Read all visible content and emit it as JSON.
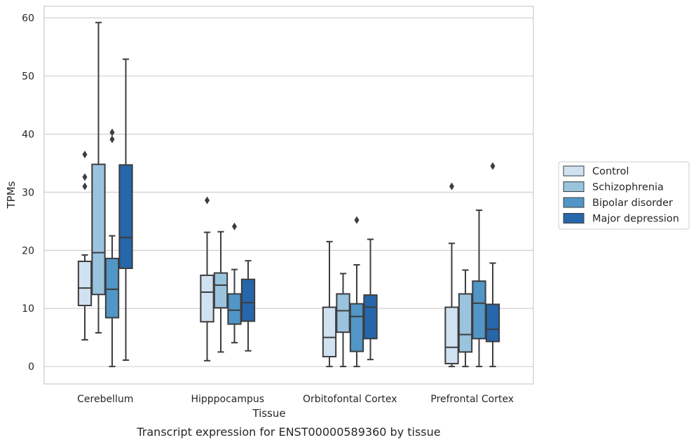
{
  "chart_data": {
    "type": "box",
    "caption": "Transcript expression for ENST00000589360 by tissue",
    "xlabel": "Tissue",
    "ylabel": "TPMs",
    "ylim": [
      -3,
      62
    ],
    "yticks": [
      0,
      10,
      20,
      30,
      40,
      50,
      60
    ],
    "grid": "horizontal",
    "legend_position": "right",
    "categories": [
      "Cerebellum",
      "Hipppocampus",
      "Orbitofontal Cortex",
      "Prefrontal Cortex"
    ],
    "series": [
      {
        "name": "Control",
        "color": "#d0e1f2",
        "boxes": [
          {
            "whisker_low": 4.6,
            "q1": 10.5,
            "median": 13.5,
            "q3": 18.1,
            "whisker_high": 19.2,
            "outliers": [
              31.0,
              32.6,
              36.5
            ]
          },
          {
            "whisker_low": 1.0,
            "q1": 7.7,
            "median": 12.8,
            "q3": 15.7,
            "whisker_high": 23.1,
            "outliers": [
              28.6
            ]
          },
          {
            "whisker_low": 0.0,
            "q1": 1.7,
            "median": 5.0,
            "q3": 10.2,
            "whisker_high": 21.5,
            "outliers": []
          },
          {
            "whisker_low": 0.0,
            "q1": 0.5,
            "median": 3.3,
            "q3": 10.2,
            "whisker_high": 21.2,
            "outliers": [
              31.0
            ]
          }
        ]
      },
      {
        "name": "Schizophrenia",
        "color": "#9ac3de",
        "boxes": [
          {
            "whisker_low": 5.8,
            "q1": 12.4,
            "median": 19.6,
            "q3": 34.8,
            "whisker_high": 59.2,
            "outliers": []
          },
          {
            "whisker_low": 2.5,
            "q1": 10.1,
            "median": 14.0,
            "q3": 16.1,
            "whisker_high": 23.2,
            "outliers": []
          },
          {
            "whisker_low": 0.0,
            "q1": 5.9,
            "median": 9.6,
            "q3": 12.5,
            "whisker_high": 16.0,
            "outliers": []
          },
          {
            "whisker_low": 0.0,
            "q1": 2.5,
            "median": 5.5,
            "q3": 12.5,
            "whisker_high": 16.6,
            "outliers": []
          }
        ]
      },
      {
        "name": "Bipolar disorder",
        "color": "#5196c6",
        "boxes": [
          {
            "whisker_low": 0.0,
            "q1": 8.4,
            "median": 13.3,
            "q3": 18.6,
            "whisker_high": 22.5,
            "outliers": [
              39.1,
              40.3
            ]
          },
          {
            "whisker_low": 4.1,
            "q1": 7.3,
            "median": 9.7,
            "q3": 12.5,
            "whisker_high": 16.7,
            "outliers": [
              24.1
            ]
          },
          {
            "whisker_low": 0.0,
            "q1": 2.6,
            "median": 8.6,
            "q3": 10.8,
            "whisker_high": 17.5,
            "outliers": [
              25.2
            ]
          },
          {
            "whisker_low": 0.0,
            "q1": 4.8,
            "median": 10.9,
            "q3": 14.7,
            "whisker_high": 26.9,
            "outliers": []
          }
        ]
      },
      {
        "name": "Major depression",
        "color": "#2666ab",
        "boxes": [
          {
            "whisker_low": 1.1,
            "q1": 16.9,
            "median": 22.2,
            "q3": 34.7,
            "whisker_high": 52.9,
            "outliers": []
          },
          {
            "whisker_low": 2.7,
            "q1": 7.8,
            "median": 11.0,
            "q3": 15.0,
            "whisker_high": 18.2,
            "outliers": []
          },
          {
            "whisker_low": 1.2,
            "q1": 4.8,
            "median": 10.2,
            "q3": 12.3,
            "whisker_high": 21.9,
            "outliers": []
          },
          {
            "whisker_low": 0.0,
            "q1": 4.3,
            "median": 6.4,
            "q3": 10.7,
            "whisker_high": 17.8,
            "outliers": [
              34.5
            ]
          }
        ]
      }
    ]
  }
}
